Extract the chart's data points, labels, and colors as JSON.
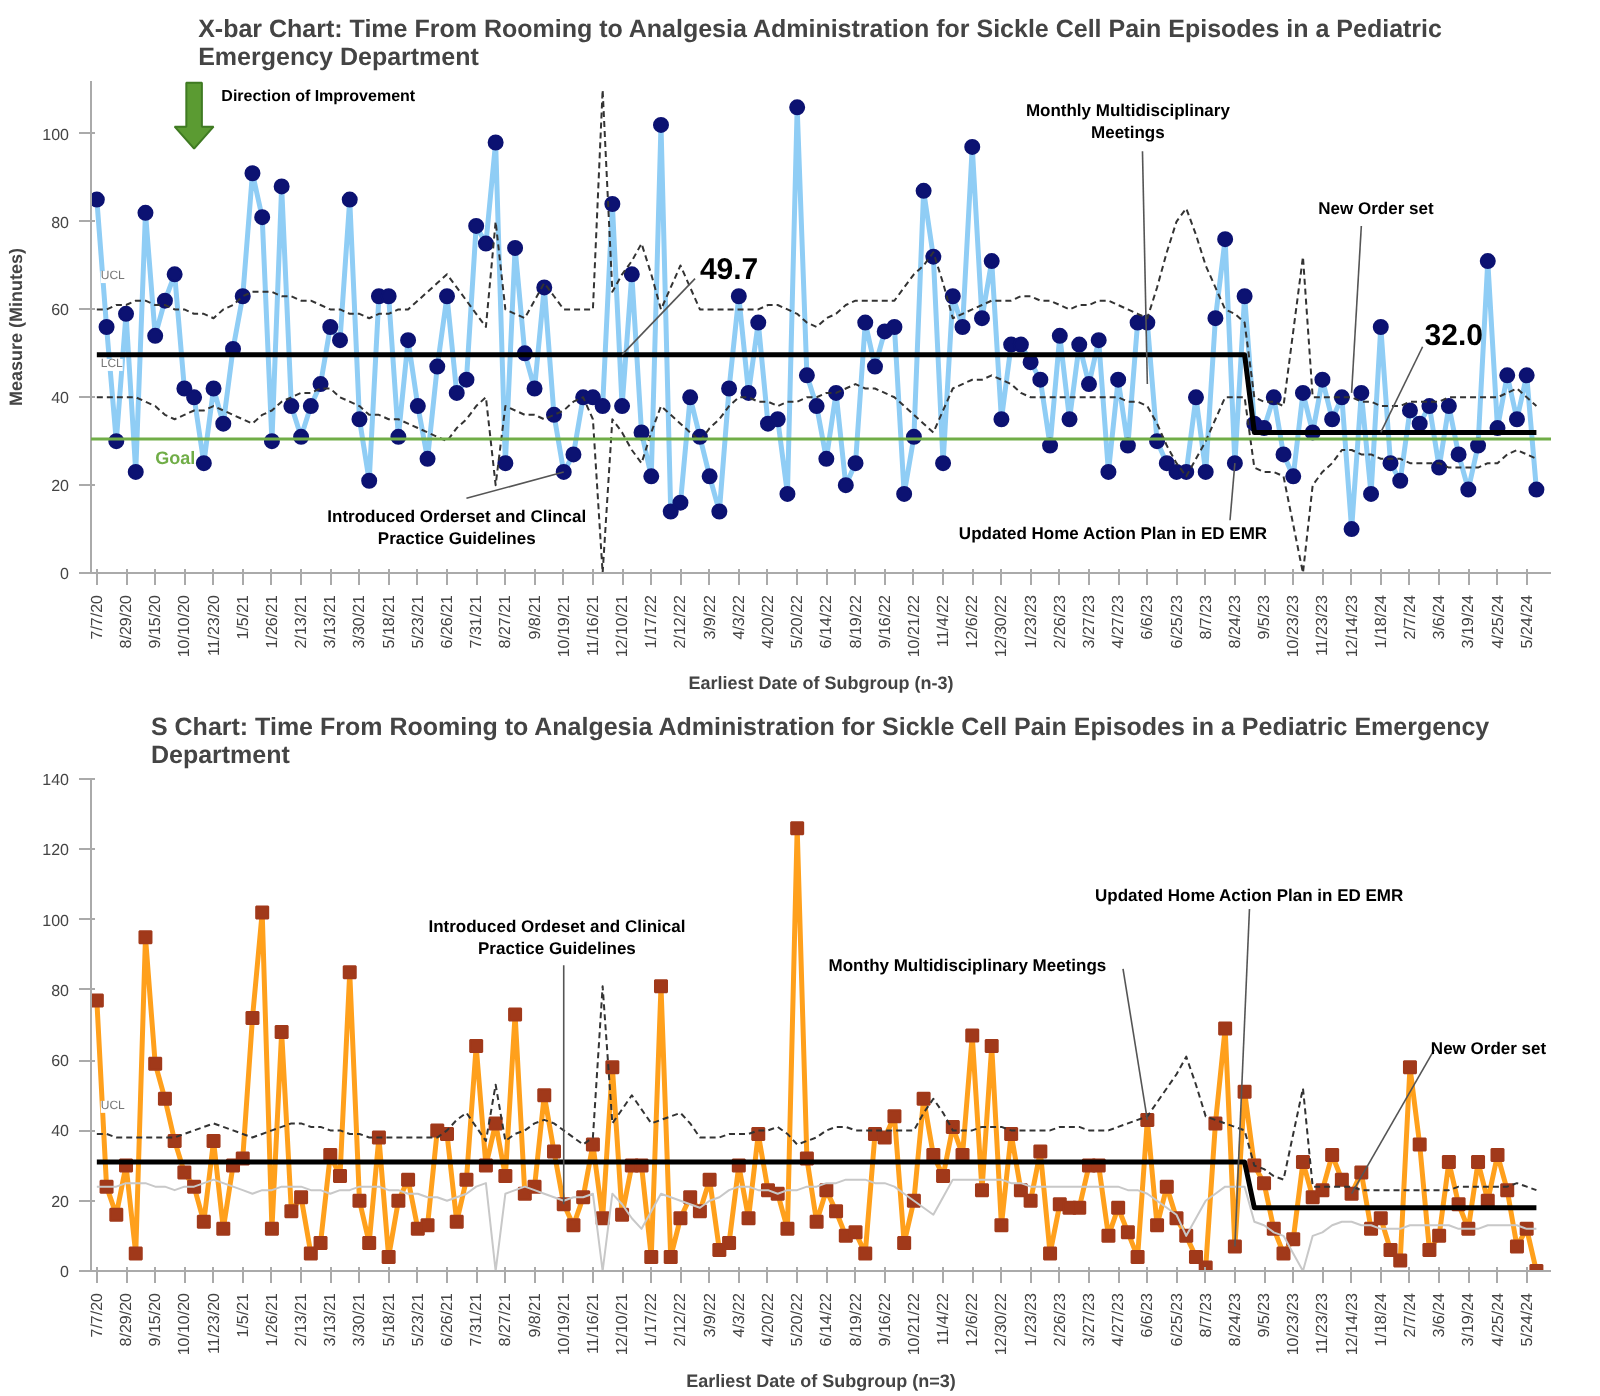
{
  "chart_data": [
    {
      "type": "line",
      "title": "X-bar Chart: Time From Rooming to Analgesia Administration for Sickle Cell Pain Episodes in a Pediatric Emergency Department",
      "xlabel": "Earliest Date of Subgroup (n-3)",
      "ylabel": "Measure (Minutes)",
      "categories": [
        "7/7/20",
        null,
        null,
        "8/29/20",
        null,
        null,
        "9/15/20",
        null,
        null,
        "10/10/20",
        null,
        null,
        "11/23/20",
        null,
        null,
        "1/5/21",
        null,
        null,
        "1/26/21",
        null,
        null,
        "2/13/21",
        null,
        null,
        "3/13/21",
        null,
        null,
        "3/30/21",
        null,
        null,
        "5/18/21",
        null,
        null,
        "5/23/21",
        null,
        null,
        "6/26/21",
        null,
        null,
        "7/31/21",
        null,
        null,
        "8/27/21",
        null,
        null,
        "9/8/21",
        null,
        null,
        "10/19/21",
        null,
        null,
        "11/16/21",
        null,
        null,
        "12/10/21",
        null,
        null,
        "1/17/22",
        null,
        null,
        "2/12/22",
        null,
        null,
        "3/9/22",
        null,
        null,
        "4/3/22",
        null,
        null,
        "4/20/22",
        null,
        null,
        "5/20/22",
        null,
        null,
        "6/14/22",
        null,
        null,
        "8/19/22",
        null,
        null,
        "9/16/22",
        null,
        null,
        "10/21/22",
        null,
        null,
        "11/4/22",
        null,
        null,
        "12/6/22",
        null,
        null,
        "12/30/22",
        null,
        null,
        "1/23/23",
        null,
        null,
        "2/26/23",
        null,
        null,
        "3/27/23",
        null,
        null,
        "4/27/23",
        null,
        null,
        "6/6/23",
        null,
        null,
        "6/25/23",
        null,
        null,
        "8/7/23",
        null,
        null,
        "8/24/23",
        null,
        null,
        "9/5/23",
        null,
        null,
        "10/23/23",
        null,
        null,
        "11/23/23",
        null,
        null,
        "12/14/23",
        null,
        null,
        "1/18/24",
        null,
        null,
        "2/7/24",
        null,
        null,
        "3/6/24",
        null,
        null,
        "3/19/24",
        null,
        null,
        "4/25/24",
        null,
        null,
        "5/24/24",
        null
      ],
      "ylim": [
        0,
        112
      ],
      "yticks": [
        0,
        20,
        40,
        60,
        80,
        100
      ],
      "series": [
        {
          "color": "#8fcdf5",
          "values": [
            85,
            56,
            30,
            59,
            23,
            82,
            54,
            62,
            68,
            42,
            40,
            25,
            42,
            34,
            51,
            63,
            91,
            81,
            30,
            88,
            38,
            31,
            38,
            43,
            56,
            53,
            85,
            35,
            21,
            63,
            63,
            31,
            53,
            38,
            26,
            47,
            63,
            41,
            44,
            79,
            75,
            98,
            25,
            74,
            50,
            42,
            65,
            36,
            23,
            27,
            40,
            40,
            38,
            84,
            38,
            68,
            32,
            22,
            102,
            14,
            16,
            40,
            31,
            22,
            14,
            42,
            63,
            41,
            57,
            34,
            35,
            18,
            106,
            45,
            38,
            26,
            41,
            20,
            25,
            57,
            47,
            55,
            56,
            18,
            31,
            87,
            72,
            25,
            63,
            56,
            97,
            58,
            71,
            35,
            52,
            52,
            48,
            44,
            29,
            54,
            35,
            52,
            43,
            53,
            23,
            44,
            29,
            57,
            57,
            30,
            25,
            23,
            23,
            40,
            23,
            58,
            76,
            25,
            63,
            34,
            33,
            40,
            27,
            22,
            41,
            32,
            44,
            35,
            40,
            10,
            41,
            18,
            56,
            25,
            21,
            37,
            34,
            38,
            24,
            38,
            27,
            19,
            29,
            71,
            33,
            45,
            35,
            45,
            19
          ]
        },
        {
          "type": "scatter",
          "marker": "circle",
          "color": "#0c1272",
          "values": [
            85,
            56,
            30,
            59,
            23,
            82,
            54,
            62,
            68,
            42,
            40,
            25,
            42,
            34,
            51,
            63,
            91,
            81,
            30,
            88,
            38,
            31,
            38,
            43,
            56,
            53,
            85,
            35,
            21,
            63,
            63,
            31,
            53,
            38,
            26,
            47,
            63,
            41,
            44,
            79,
            75,
            98,
            25,
            74,
            50,
            42,
            65,
            36,
            23,
            27,
            40,
            40,
            38,
            84,
            38,
            68,
            32,
            22,
            102,
            14,
            16,
            40,
            31,
            22,
            14,
            42,
            63,
            41,
            57,
            34,
            35,
            18,
            106,
            45,
            38,
            26,
            41,
            20,
            25,
            57,
            47,
            55,
            56,
            18,
            31,
            87,
            72,
            25,
            63,
            56,
            97,
            58,
            71,
            35,
            52,
            52,
            48,
            44,
            29,
            54,
            35,
            52,
            43,
            53,
            23,
            44,
            29,
            57,
            57,
            30,
            25,
            23,
            23,
            40,
            23,
            58,
            76,
            25,
            63,
            34,
            33,
            40,
            27,
            22,
            41,
            32,
            44,
            35,
            40,
            10,
            41,
            18,
            56,
            25,
            21,
            37,
            34,
            38,
            24,
            38,
            27,
            19,
            29,
            71,
            33,
            45,
            35,
            45,
            19
          ]
        },
        {
          "name": "UCL",
          "line_style": "dashed",
          "color": "#333333",
          "values": [
            60,
            60,
            61,
            61,
            62,
            62,
            61,
            61,
            60,
            60,
            59,
            59,
            58,
            60,
            61,
            63,
            64,
            64,
            64,
            63,
            63,
            62,
            62,
            61,
            60,
            60,
            59,
            59,
            58,
            59,
            59,
            60,
            60,
            62,
            64,
            66,
            68,
            65,
            62,
            59,
            56,
            80,
            60,
            59,
            58,
            62,
            66,
            63,
            60,
            60,
            60,
            60,
            110,
            64,
            68,
            71,
            75,
            68,
            60,
            65,
            70,
            65,
            60,
            60,
            60,
            60,
            60,
            60,
            60,
            61,
            61,
            60,
            59,
            57,
            56,
            58,
            59,
            61,
            62,
            62,
            62,
            62,
            62,
            65,
            68,
            70,
            73,
            66,
            58,
            59,
            60,
            61,
            62,
            62,
            62,
            63,
            63,
            62,
            62,
            61,
            60,
            61,
            61,
            62,
            62,
            61,
            60,
            59,
            58,
            65,
            73,
            80,
            83,
            77,
            70,
            65,
            60,
            59,
            57,
            40,
            39,
            39,
            38,
            55,
            72,
            40,
            40,
            40,
            40,
            40,
            39,
            39,
            38,
            38,
            38,
            39,
            39,
            39,
            39,
            40,
            40,
            40,
            40,
            40,
            40,
            41,
            42,
            40,
            38
          ]
        },
        {
          "name": "LCL",
          "line_style": "dashed",
          "color": "#333333",
          "values": [
            40,
            40,
            40,
            40,
            40,
            39,
            38,
            36,
            35,
            36,
            37,
            37,
            38,
            37,
            36,
            35,
            34,
            36,
            37,
            39,
            40,
            41,
            41,
            42,
            42,
            40,
            39,
            38,
            36,
            36,
            35,
            35,
            34,
            33,
            32,
            31,
            30,
            33,
            35,
            38,
            40,
            20,
            38,
            37,
            36,
            36,
            35,
            36,
            37,
            39,
            40,
            35,
            0,
            35,
            32,
            28,
            25,
            32,
            38,
            36,
            34,
            32,
            30,
            33,
            35,
            38,
            40,
            40,
            39,
            39,
            38,
            39,
            39,
            40,
            40,
            41,
            41,
            42,
            43,
            42,
            42,
            41,
            40,
            38,
            36,
            34,
            32,
            37,
            42,
            43,
            44,
            44,
            45,
            44,
            43,
            41,
            40,
            40,
            40,
            40,
            40,
            40,
            40,
            40,
            40,
            40,
            39,
            39,
            38,
            34,
            29,
            25,
            22,
            26,
            30,
            35,
            40,
            40,
            40,
            24,
            23,
            23,
            22,
            11,
            0,
            20,
            23,
            25,
            28,
            28,
            27,
            27,
            26,
            26,
            26,
            25,
            25,
            25,
            25,
            24,
            24,
            24,
            24,
            25,
            25,
            27,
            28,
            27,
            26
          ]
        },
        {
          "color": "#000000",
          "values": [
            49.7,
            49.7,
            49.7,
            49.7,
            49.7,
            49.7,
            49.7,
            49.7,
            49.7,
            49.7,
            49.7,
            49.7,
            49.7,
            49.7,
            49.7,
            49.7,
            49.7,
            49.7,
            49.7,
            49.7,
            49.7,
            49.7,
            49.7,
            49.7,
            49.7,
            49.7,
            49.7,
            49.7,
            49.7,
            49.7,
            49.7,
            49.7,
            49.7,
            49.7,
            49.7,
            49.7,
            49.7,
            49.7,
            49.7,
            49.7,
            49.7,
            49.7,
            49.7,
            49.7,
            49.7,
            49.7,
            49.7,
            49.7,
            49.7,
            49.7,
            49.7,
            49.7,
            49.7,
            49.7,
            49.7,
            49.7,
            49.7,
            49.7,
            49.7,
            49.7,
            49.7,
            49.7,
            49.7,
            49.7,
            49.7,
            49.7,
            49.7,
            49.7,
            49.7,
            49.7,
            49.7,
            49.7,
            49.7,
            49.7,
            49.7,
            49.7,
            49.7,
            49.7,
            49.7,
            49.7,
            49.7,
            49.7,
            49.7,
            49.7,
            49.7,
            49.7,
            49.7,
            49.7,
            49.7,
            49.7,
            49.7,
            49.7,
            49.7,
            49.7,
            49.7,
            49.7,
            49.7,
            49.7,
            49.7,
            49.7,
            49.7,
            49.7,
            49.7,
            49.7,
            49.7,
            49.7,
            49.7,
            49.7,
            49.7,
            49.7,
            49.7,
            49.7,
            49.7,
            49.7,
            49.7,
            49.7,
            49.7,
            49.7,
            49.7,
            32.0,
            32.0,
            32.0,
            32.0,
            32.0,
            32.0,
            32.0,
            32.0,
            32.0,
            32.0,
            32.0,
            32.0,
            32.0,
            32.0,
            32.0,
            32.0,
            32.0,
            32.0,
            32.0,
            32.0,
            32.0,
            32.0,
            32.0,
            32.0,
            32.0,
            32.0,
            32.0,
            32.0,
            32.0,
            32.0
          ]
        }
      ],
      "ref_lines": [
        {
          "axis": "y",
          "value": 30.5,
          "label": "Goal",
          "color": "#70ad47"
        }
      ],
      "annotations": [
        "Direction of Improvement",
        {
          "text": "49.7",
          "x": "12/10/21",
          "y": 49.7
        },
        {
          "text": "32.0",
          "x": "1/18/24",
          "y": 32.0
        },
        {
          "text": "Introduced Orderset and Clincal Practice Guidelines",
          "x": "10/19/21",
          "y": 23
        },
        {
          "text": "Monthly Multidisciplinary Meetings",
          "x": "6/6/23",
          "y": 43
        },
        {
          "text": "Updated Home Action Plan in ED EMR",
          "x": "8/24/23",
          "y": 25
        },
        {
          "text": "New Order set",
          "x": "12/14/23",
          "y": 41
        }
      ]
    },
    {
      "type": "line",
      "title": "S Chart: Time From Rooming to Analgesia Administration for Sickle Cell Pain Episodes in a Pediatric Emergency Department",
      "xlabel": "Earliest Date of Subgroup (n=3)",
      "categories": [
        "7/7/20",
        null,
        null,
        "8/29/20",
        null,
        null,
        "9/15/20",
        null,
        null,
        "10/10/20",
        null,
        null,
        "11/23/20",
        null,
        null,
        "1/5/21",
        null,
        null,
        "1/26/21",
        null,
        null,
        "2/13/21",
        null,
        null,
        "3/13/21",
        null,
        null,
        "3/30/21",
        null,
        null,
        "5/18/21",
        null,
        null,
        "5/23/21",
        null,
        null,
        "6/26/21",
        null,
        null,
        "7/31/21",
        null,
        null,
        "8/27/21",
        null,
        null,
        "9/8/21",
        null,
        null,
        "10/19/21",
        null,
        null,
        "11/16/21",
        null,
        null,
        "12/10/21",
        null,
        null,
        "1/17/22",
        null,
        null,
        "2/12/22",
        null,
        null,
        "3/9/22",
        null,
        null,
        "4/3/22",
        null,
        null,
        "4/20/22",
        null,
        null,
        "5/20/22",
        null,
        null,
        "6/14/22",
        null,
        null,
        "8/19/22",
        null,
        null,
        "9/16/22",
        null,
        null,
        "10/21/22",
        null,
        null,
        "11/4/22",
        null,
        null,
        "12/6/22",
        null,
        null,
        "12/30/22",
        null,
        null,
        "1/23/23",
        null,
        null,
        "2/26/23",
        null,
        null,
        "3/27/23",
        null,
        null,
        "4/27/23",
        null,
        null,
        "6/6/23",
        null,
        null,
        "6/25/23",
        null,
        null,
        "8/7/23",
        null,
        null,
        "8/24/23",
        null,
        null,
        "9/5/23",
        null,
        null,
        "10/23/23",
        null,
        null,
        "11/23/23",
        null,
        null,
        "12/14/23",
        null,
        null,
        "1/18/24",
        null,
        null,
        "2/7/24",
        null,
        null,
        "3/6/24",
        null,
        null,
        "3/19/24",
        null,
        null,
        "4/25/24",
        null,
        null,
        "5/24/24",
        null
      ],
      "ylim": [
        0,
        140
      ],
      "yticks": [
        0,
        20,
        40,
        60,
        80,
        100,
        120,
        140
      ],
      "series": [
        {
          "color": "#ffa01c",
          "values": [
            77,
            24,
            16,
            30,
            5,
            95,
            59,
            49,
            37,
            28,
            24,
            14,
            37,
            12,
            30,
            32,
            72,
            102,
            12,
            68,
            17,
            21,
            5,
            8,
            33,
            27,
            85,
            20,
            8,
            38,
            4,
            20,
            26,
            12,
            13,
            40,
            39,
            14,
            26,
            64,
            30,
            42,
            27,
            73,
            22,
            24,
            50,
            34,
            19,
            13,
            21,
            36,
            15,
            58,
            16,
            30,
            30,
            4,
            81,
            4,
            15,
            21,
            17,
            26,
            6,
            8,
            30,
            15,
            39,
            23,
            22,
            12,
            126,
            32,
            14,
            23,
            17,
            10,
            11,
            5,
            39,
            38,
            44,
            8,
            20,
            49,
            33,
            27,
            41,
            33,
            67,
            23,
            64,
            13,
            39,
            23,
            20,
            34,
            5,
            19,
            18,
            18,
            30,
            30,
            10,
            18,
            11,
            4,
            43,
            13,
            24,
            15,
            10,
            4,
            1,
            42,
            69,
            7,
            51,
            30,
            25,
            12,
            5,
            9,
            31,
            21,
            23,
            33,
            26,
            22,
            28,
            12,
            15,
            6,
            3,
            58,
            36,
            6,
            10,
            31,
            19,
            12,
            31,
            20,
            33,
            23,
            7,
            12,
            0
          ]
        },
        {
          "type": "scatter",
          "marker": "square",
          "color": "#a1391a",
          "values": [
            77,
            24,
            16,
            30,
            5,
            95,
            59,
            49,
            37,
            28,
            24,
            14,
            37,
            12,
            30,
            32,
            72,
            102,
            12,
            68,
            17,
            21,
            5,
            8,
            33,
            27,
            85,
            20,
            8,
            38,
            4,
            20,
            26,
            12,
            13,
            40,
            39,
            14,
            26,
            64,
            30,
            42,
            27,
            73,
            22,
            24,
            50,
            34,
            19,
            13,
            21,
            36,
            15,
            58,
            16,
            30,
            30,
            4,
            81,
            4,
            15,
            21,
            17,
            26,
            6,
            8,
            30,
            15,
            39,
            23,
            22,
            12,
            126,
            32,
            14,
            23,
            17,
            10,
            11,
            5,
            39,
            38,
            44,
            8,
            20,
            49,
            33,
            27,
            41,
            33,
            67,
            23,
            64,
            13,
            39,
            23,
            20,
            34,
            5,
            19,
            18,
            18,
            30,
            30,
            10,
            18,
            11,
            4,
            43,
            13,
            24,
            15,
            10,
            4,
            1,
            42,
            69,
            7,
            51,
            30,
            25,
            12,
            5,
            9,
            31,
            21,
            23,
            33,
            26,
            22,
            28,
            12,
            15,
            6,
            3,
            58,
            36,
            6,
            10,
            31,
            19,
            12,
            31,
            20,
            33,
            23,
            7,
            12,
            0
          ]
        },
        {
          "name": "UCL",
          "line_style": "dashed",
          "color": "#333333",
          "values": [
            39,
            39,
            38,
            38,
            38,
            38,
            38,
            38,
            38,
            39,
            40,
            41,
            42,
            41,
            40,
            39,
            38,
            39,
            40,
            41,
            42,
            42,
            41,
            41,
            40,
            40,
            39,
            39,
            38,
            38,
            38,
            38,
            38,
            38,
            38,
            38,
            40,
            43,
            45,
            41,
            37,
            53,
            37,
            39,
            40,
            42,
            43,
            42,
            40,
            38,
            36,
            38,
            81,
            42,
            46,
            50,
            46,
            42,
            43,
            44,
            45,
            42,
            38,
            38,
            38,
            39,
            39,
            39,
            40,
            40,
            41,
            39,
            36,
            37,
            38,
            40,
            41,
            41,
            40,
            40,
            40,
            40,
            40,
            40,
            40,
            45,
            49,
            45,
            40,
            40,
            40,
            41,
            41,
            41,
            40,
            40,
            40,
            40,
            40,
            41,
            41,
            41,
            40,
            40,
            40,
            41,
            42,
            43,
            44,
            48,
            52,
            56,
            61,
            53,
            44,
            43,
            42,
            41,
            40,
            30,
            29,
            27,
            26,
            39,
            52,
            24,
            24,
            24,
            24,
            24,
            23,
            23,
            23,
            23,
            23,
            23,
            23,
            23,
            23,
            23,
            24,
            24,
            24,
            24,
            24,
            24,
            25,
            24,
            23
          ]
        },
        {
          "line_style": "solid",
          "color": "#c8c8c8",
          "values": [
            24,
            24,
            24,
            25,
            25,
            25,
            24,
            24,
            23,
            24,
            24,
            25,
            26,
            25,
            24,
            23,
            22,
            23,
            23,
            24,
            24,
            24,
            23,
            23,
            22,
            23,
            23,
            24,
            24,
            24,
            23,
            23,
            22,
            22,
            21,
            21,
            20,
            21,
            22,
            24,
            25,
            0,
            22,
            23,
            24,
            23,
            22,
            21,
            20,
            21,
            21,
            22,
            0,
            22,
            19,
            15,
            12,
            17,
            22,
            21,
            20,
            19,
            18,
            20,
            21,
            23,
            24,
            24,
            23,
            23,
            22,
            23,
            23,
            24,
            24,
            25,
            25,
            26,
            26,
            26,
            25,
            25,
            24,
            22,
            20,
            18,
            16,
            21,
            26,
            26,
            26,
            26,
            26,
            26,
            25,
            25,
            24,
            24,
            24,
            24,
            24,
            24,
            24,
            24,
            24,
            24,
            23,
            23,
            22,
            20,
            18,
            16,
            10,
            15,
            20,
            22,
            24,
            24,
            24,
            14,
            13,
            11,
            10,
            5,
            0,
            10,
            11,
            13,
            14,
            14,
            13,
            13,
            12,
            12,
            12,
            13,
            13,
            13,
            13,
            13,
            12,
            12,
            12,
            13,
            13,
            13,
            13,
            12,
            12
          ]
        },
        {
          "color": "#000000",
          "values": [
            31,
            31,
            31,
            31,
            31,
            31,
            31,
            31,
            31,
            31,
            31,
            31,
            31,
            31,
            31,
            31,
            31,
            31,
            31,
            31,
            31,
            31,
            31,
            31,
            31,
            31,
            31,
            31,
            31,
            31,
            31,
            31,
            31,
            31,
            31,
            31,
            31,
            31,
            31,
            31,
            31,
            31,
            31,
            31,
            31,
            31,
            31,
            31,
            31,
            31,
            31,
            31,
            31,
            31,
            31,
            31,
            31,
            31,
            31,
            31,
            31,
            31,
            31,
            31,
            31,
            31,
            31,
            31,
            31,
            31,
            31,
            31,
            31,
            31,
            31,
            31,
            31,
            31,
            31,
            31,
            31,
            31,
            31,
            31,
            31,
            31,
            31,
            31,
            31,
            31,
            31,
            31,
            31,
            31,
            31,
            31,
            31,
            31,
            31,
            31,
            31,
            31,
            31,
            31,
            31,
            31,
            31,
            31,
            31,
            31,
            31,
            31,
            31,
            31,
            31,
            31,
            31,
            31,
            31,
            18,
            18,
            18,
            18,
            18,
            18,
            18,
            18,
            18,
            18,
            18,
            18,
            18,
            18,
            18,
            18,
            18,
            18,
            18,
            18,
            18,
            18,
            18,
            18,
            18,
            18,
            18,
            18,
            18,
            18
          ]
        }
      ],
      "annotations": [
        {
          "text": "Introduced Ordeset and Clinical Practice Guidelines",
          "x": "10/19/21",
          "y": 19
        },
        {
          "text": "Monthy Multidisciplinary Meetings",
          "x": "6/6/23",
          "y": 43
        },
        {
          "text": "Updated Home Action Plan in ED EMR",
          "x": "8/24/23",
          "y": 7
        },
        {
          "text": "New Order set",
          "x": "12/14/23",
          "y": 22
        }
      ]
    }
  ]
}
